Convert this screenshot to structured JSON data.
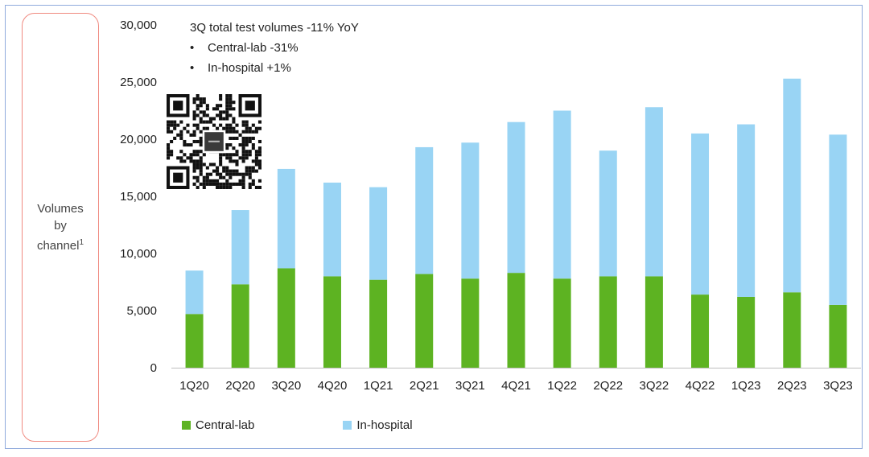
{
  "side_label": {
    "line1": "Volumes",
    "line2": "by",
    "line3": "channel",
    "footnote": "1"
  },
  "annotation": {
    "headline": "3Q total test volumes -11% YoY",
    "bullets": [
      {
        "text": "Central-lab -31%"
      },
      {
        "text": "In-hospital +1%"
      }
    ]
  },
  "colors": {
    "central_lab": "#5db322",
    "in_hospital": "#99d4f4",
    "frame": "#8faadc",
    "side_box": "#f08a80"
  },
  "qr_icon": "qr-code-icon",
  "chart_data": {
    "type": "bar",
    "stacked": true,
    "categories": [
      "1Q20",
      "2Q20",
      "3Q20",
      "4Q20",
      "1Q21",
      "2Q21",
      "3Q21",
      "4Q21",
      "1Q22",
      "2Q22",
      "3Q22",
      "4Q22",
      "1Q23",
      "2Q23",
      "3Q23"
    ],
    "series": [
      {
        "name": "Central-lab",
        "values": [
          4700,
          7300,
          8700,
          8000,
          7700,
          8200,
          7800,
          8300,
          7800,
          8000,
          8000,
          6400,
          6200,
          6600,
          5500
        ]
      },
      {
        "name": "In-hospital",
        "values": [
          3800,
          6500,
          8700,
          8200,
          8100,
          11100,
          11900,
          13200,
          14700,
          11000,
          14800,
          14100,
          15100,
          18700,
          14900
        ]
      }
    ],
    "yticks": [
      "0",
      "5,000",
      "10,000",
      "15,000",
      "20,000",
      "25,000",
      "30,000"
    ],
    "ylim": [
      0,
      30000
    ],
    "grid": false,
    "legend_position": "bottom-left"
  }
}
